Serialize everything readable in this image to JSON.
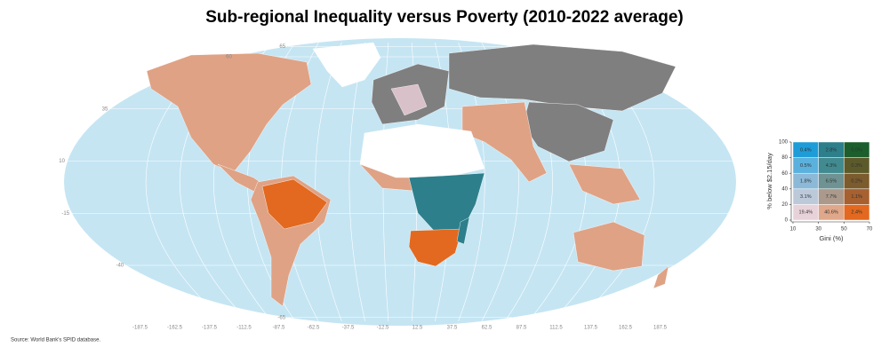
{
  "title": "Sub-regional Inequality versus Poverty (2010-2022 average)",
  "source": "Source: World Bank's SPID database.",
  "map": {
    "lat_labels": [
      65,
      60,
      35,
      10,
      -15,
      -40,
      -65
    ],
    "lon_labels": [
      -187.5,
      -162.5,
      -137.5,
      -112.5,
      -87.5,
      -62.5,
      -37.5,
      -12.5,
      12.5,
      37.5,
      62.5,
      87.5,
      112.5,
      137.5,
      162.5,
      187.5
    ]
  },
  "legend": {
    "y_label": "% below $2.15/day",
    "x_label": "Gini (%)",
    "xticks": [
      10,
      30,
      50,
      70
    ],
    "yticks": [
      0,
      20,
      40,
      60,
      80,
      100
    ],
    "rows": [
      {
        "colors": [
          "#e8d2da",
          "#e0a88a",
          "#e2691f"
        ],
        "values": [
          19.4,
          40.6,
          2.4
        ],
        "value_labels": [
          "19.4%",
          "40.6%",
          "2.4%"
        ]
      },
      {
        "colors": [
          "#bcc9d9",
          "#ab9a8c",
          "#a7602f"
        ],
        "values": [
          3.1,
          7.7,
          1.1
        ],
        "value_labels": [
          "3.1%",
          "7.7%",
          "1.1%"
        ]
      },
      {
        "colors": [
          "#8cb9d8",
          "#6f9292",
          "#7c5b2c"
        ],
        "values": [
          1.8,
          6.5,
          0.2
        ],
        "value_labels": [
          "1.8%",
          "6.5%",
          "0.2%"
        ]
      },
      {
        "colors": [
          "#5ab1dd",
          "#418b90",
          "#5c5a2b"
        ],
        "values": [
          0.5,
          4.3,
          0.3
        ],
        "value_labels": [
          "0.5%",
          "4.3%",
          "0.3%"
        ]
      },
      {
        "colors": [
          "#1d9cd8",
          "#2c7f8b",
          "#1c5e2c"
        ],
        "values": [
          0.4,
          2.8,
          0.0
        ],
        "value_labels": [
          "0.4%",
          "2.8%",
          "0.0%"
        ]
      }
    ]
  }
}
